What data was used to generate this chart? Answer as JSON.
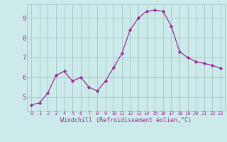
{
  "x": [
    0,
    1,
    2,
    3,
    4,
    5,
    6,
    7,
    8,
    9,
    10,
    11,
    12,
    13,
    14,
    15,
    16,
    17,
    18,
    19,
    20,
    21,
    22,
    23
  ],
  "y": [
    4.6,
    4.7,
    5.2,
    6.1,
    6.3,
    5.8,
    6.0,
    5.5,
    5.3,
    5.8,
    6.5,
    7.2,
    8.4,
    9.0,
    9.35,
    9.4,
    9.35,
    8.6,
    7.3,
    7.0,
    6.8,
    6.7,
    6.6,
    6.45
  ],
  "line_color": "#993399",
  "marker": "D",
  "marker_size": 2.2,
  "bg_color": "#cceaea",
  "grid_color": "#aacccc",
  "xlabel": "Windchill (Refroidissement éolien,°C)",
  "xlabel_color": "#993399",
  "tick_color": "#993399",
  "ylabel_ticks": [
    5,
    6,
    7,
    8,
    9
  ],
  "xlim": [
    -0.5,
    23.5
  ],
  "ylim": [
    4.3,
    9.7
  ],
  "title": ""
}
